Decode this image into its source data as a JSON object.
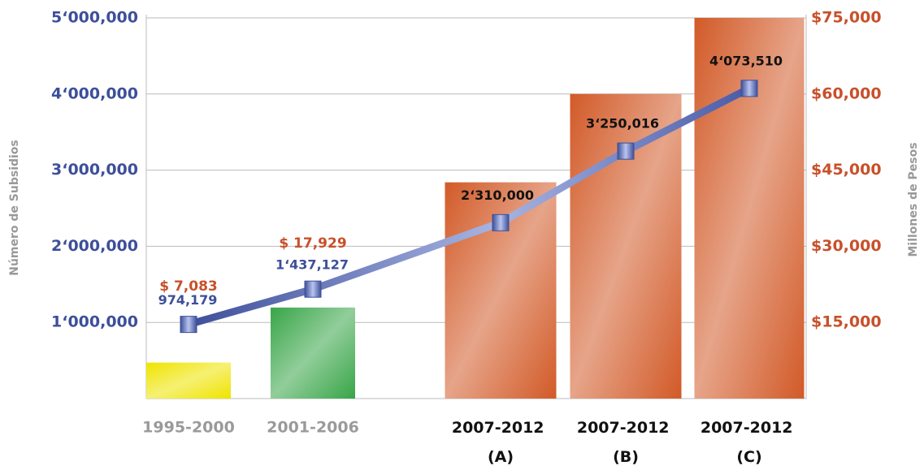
{
  "chart_data": {
    "type": "combo",
    "y_label": "Número de Subsidios",
    "y2_label": "Millones de Pesos",
    "categories": [
      "1995-2000",
      "2001-2006",
      "2007-2012 (A)",
      "2007-2012 (B)",
      "2007-2012 (C)"
    ],
    "series": [
      {
        "type": "bar",
        "axis": "y2",
        "colors": [
          "#efe400",
          "#38a548",
          "#d25a28",
          "#d25a28",
          "#d25a28"
        ],
        "values": [
          7083,
          17929,
          42600,
          60000,
          75000
        ],
        "value_labels": [
          "$ 7,083",
          "$ 17,929",
          null,
          null,
          null
        ]
      },
      {
        "type": "line",
        "color": "#4a5ba8",
        "values": [
          974179,
          1437127,
          2310000,
          3250016,
          4073510
        ],
        "value_labels": [
          "974,179",
          "1‘437,127",
          "2‘310,000",
          "3‘250,016",
          "4‘073,510"
        ]
      }
    ],
    "ylim": [
      0,
      5000000
    ],
    "yticks": [
      {
        "value": 1000000,
        "label": "1‘000,000"
      },
      {
        "value": 2000000,
        "label": "2‘000,000"
      },
      {
        "value": 3000000,
        "label": "3‘000,000"
      },
      {
        "value": 4000000,
        "label": "4‘000,000"
      },
      {
        "value": 5000000,
        "label": "5‘000,000"
      }
    ],
    "y2lim": [
      0,
      75000
    ],
    "y2ticks": [
      {
        "value": 15000,
        "label": "$15,000"
      },
      {
        "value": 30000,
        "label": "$30,000"
      },
      {
        "value": 45000,
        "label": "$45,000"
      },
      {
        "value": 60000,
        "label": "$60,000"
      },
      {
        "value": 75000,
        "label": "$75,000"
      }
    ],
    "grid": true
  }
}
